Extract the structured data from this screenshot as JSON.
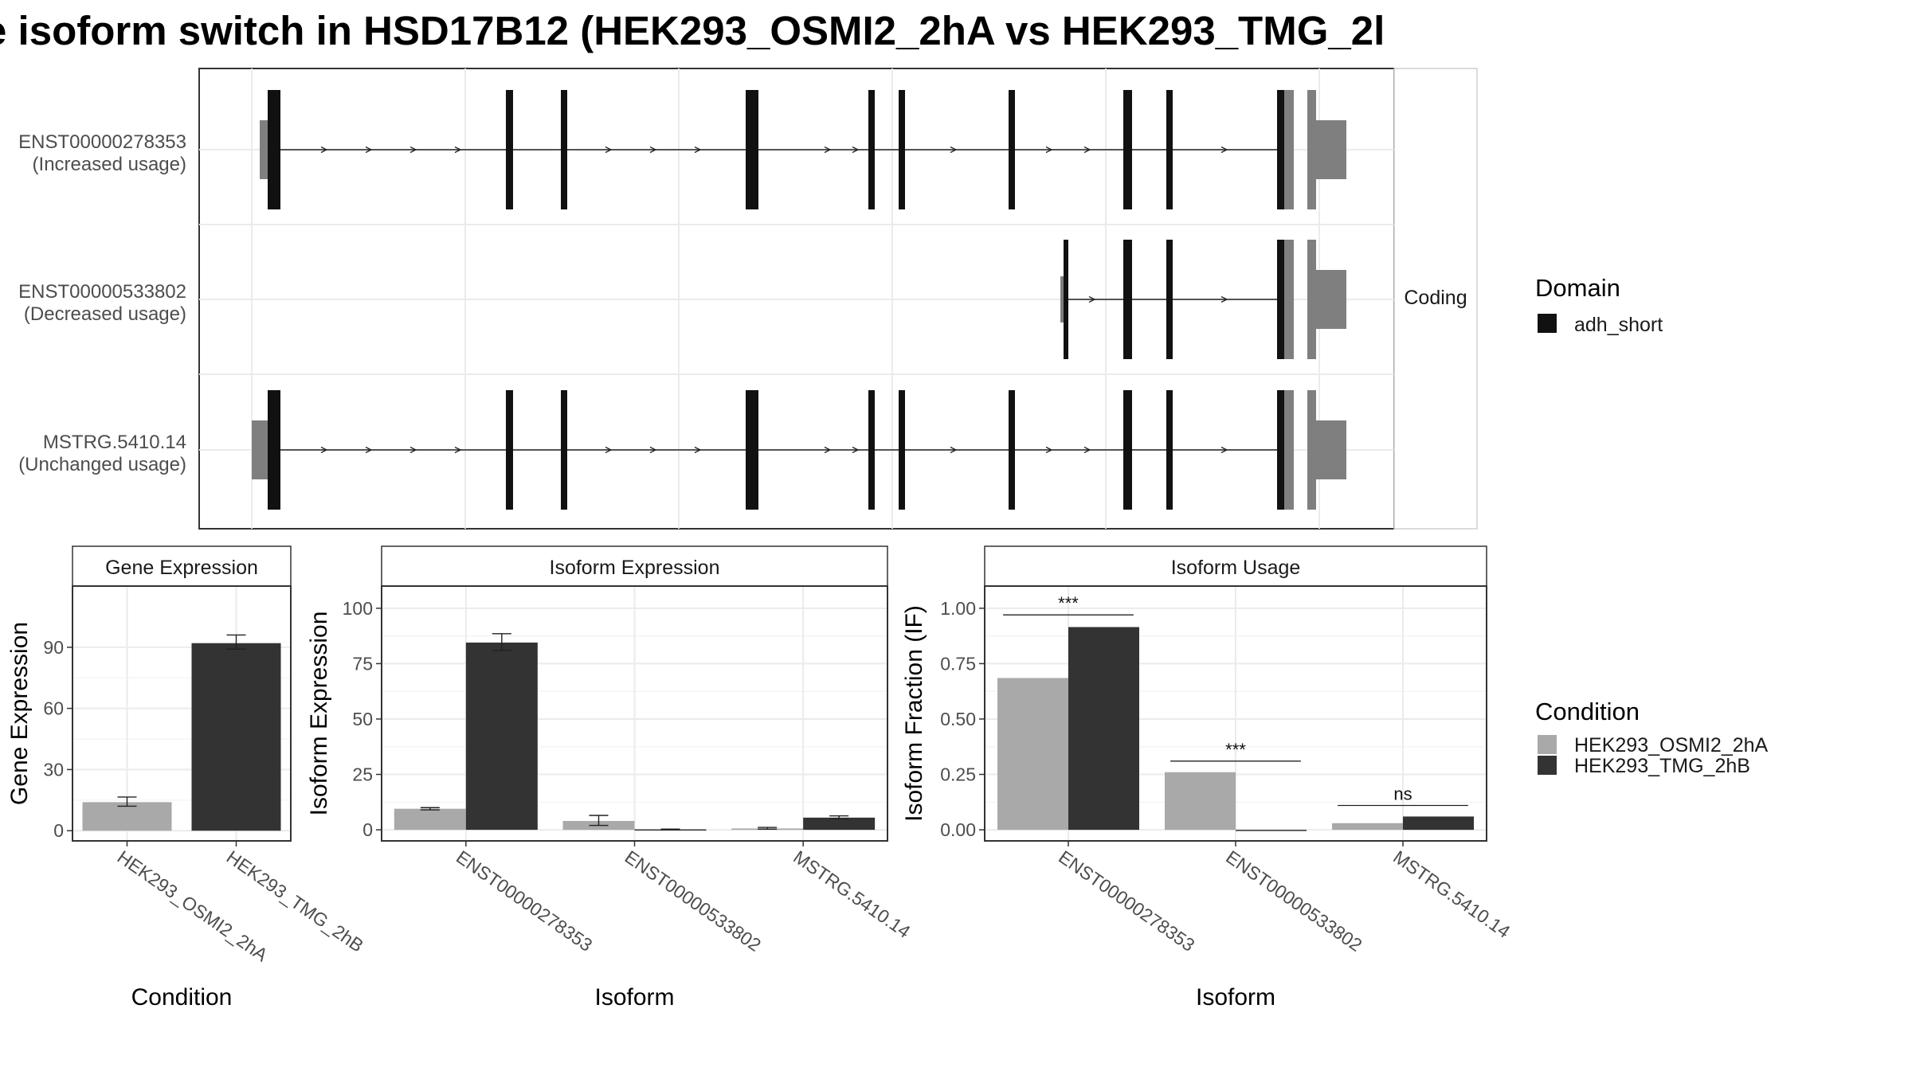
{
  "title": "e isoform switch in HSD17B12 (HEK293_OSMI2_2hA vs HEK293_TMG_2l",
  "colors": {
    "cond_a": "#a9a9a9",
    "cond_b": "#333333",
    "exon_coding": "#111111",
    "utr": "#7f7f7f",
    "grid": "#ebebeb",
    "border": "#333333",
    "strip_bg": "#ffffff"
  },
  "structure_panel": {
    "strip_label": "Coding",
    "isoforms": [
      {
        "id": "ENST00000278353",
        "usage": "(Increased usage)"
      },
      {
        "id": "ENST00000533802",
        "usage": "(Decreased usage)"
      },
      {
        "id": "MSTRG.5410.14",
        "usage": "(Unchanged usage)"
      }
    ],
    "legend": {
      "title": "Domain",
      "items": [
        "adh_short"
      ]
    }
  },
  "condition_legend": {
    "title": "Condition",
    "items": [
      "HEK293_OSMI2_2hA",
      "HEK293_TMG_2hB"
    ]
  },
  "chart_data": [
    {
      "type": "bar",
      "panel_title": "Gene Expression",
      "xlabel": "Condition",
      "ylabel": "Gene Expression",
      "categories": [
        "HEK293_OSMI2_2hA",
        "HEK293_TMG_2hB"
      ],
      "values": [
        14,
        92
      ],
      "errors": [
        [
          12,
          16.5
        ],
        [
          89,
          96
        ]
      ],
      "ylim": [
        -5,
        120
      ],
      "yticks": [
        0,
        30,
        60,
        90
      ],
      "ytick_labels": [
        "0",
        "30",
        "60",
        "90"
      ]
    },
    {
      "type": "bar",
      "panel_title": "Isoform Expression",
      "xlabel": "Isoform",
      "ylabel": "Isoform Expression",
      "categories": [
        "ENST00000278353",
        "ENST00000533802",
        "MSTRG.5410.14"
      ],
      "series": [
        {
          "name": "HEK293_OSMI2_2hA",
          "values": [
            9.5,
            4.0,
            0.6
          ],
          "errors": [
            [
              9.0,
              10.0
            ],
            [
              2.0,
              6.5
            ],
            [
              0.3,
              1.1
            ]
          ]
        },
        {
          "name": "HEK293_TMG_2hB",
          "values": [
            84.5,
            0.2,
            5.5
          ],
          "errors": [
            [
              81,
              88.5
            ],
            [
              0.1,
              0.3
            ],
            [
              5.0,
              6.3
            ]
          ]
        }
      ],
      "ylim": [
        -5,
        110
      ],
      "yticks": [
        0,
        25,
        50,
        75,
        100
      ],
      "ytick_labels": [
        "0",
        "25",
        "50",
        "75",
        "100"
      ]
    },
    {
      "type": "bar",
      "panel_title": "Isoform Usage",
      "xlabel": "Isoform",
      "ylabel": "Isoform Fraction (IF)",
      "categories": [
        "ENST00000278353",
        "ENST00000533802",
        "MSTRG.5410.14"
      ],
      "series": [
        {
          "name": "HEK293_OSMI2_2hA",
          "values": [
            0.685,
            0.26,
            0.03
          ]
        },
        {
          "name": "HEK293_TMG_2hB",
          "values": [
            0.915,
            0.0,
            0.06
          ]
        }
      ],
      "significance": [
        "***",
        "***",
        "ns"
      ],
      "significance_y": [
        0.97,
        0.31,
        0.11
      ],
      "ylim": [
        -0.05,
        1.1
      ],
      "yticks": [
        0,
        0.25,
        0.5,
        0.75,
        1.0
      ],
      "ytick_labels": [
        "0.00",
        "0.25",
        "0.50",
        "0.75",
        "1.00"
      ]
    }
  ]
}
